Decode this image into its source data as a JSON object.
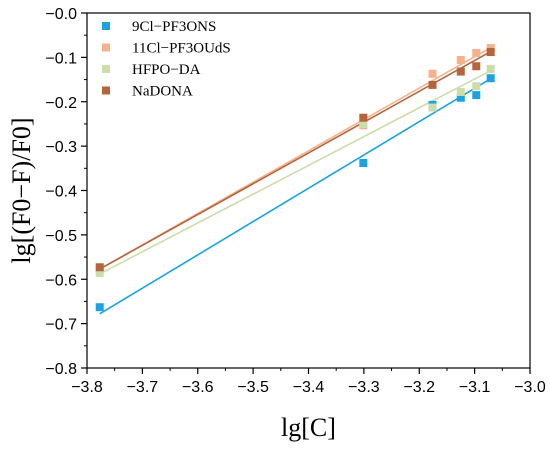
{
  "chart_data": {
    "type": "scatter",
    "xlabel": "lg[C]",
    "ylabel": "lg[(F0−F)/F0]",
    "xlim": [
      -3.8,
      -3.0
    ],
    "ylim": [
      -0.8,
      0.0
    ],
    "x_ticks": [
      -3.8,
      -3.7,
      -3.6,
      -3.5,
      -3.4,
      -3.3,
      -3.2,
      -3.1,
      -3.0
    ],
    "x_tick_labels": [
      "−3.8",
      "−3.7",
      "−3.6",
      "−3.5",
      "−3.4",
      "−3.3",
      "−3.2",
      "−3.1",
      "−3.0"
    ],
    "y_ticks": [
      -0.8,
      -0.7,
      -0.6,
      -0.5,
      -0.4,
      -0.3,
      -0.2,
      -0.1,
      0.0
    ],
    "y_tick_labels": [
      "−0.8",
      "−0.7",
      "−0.6",
      "−0.5",
      "−0.4",
      "−0.3",
      "−0.2",
      "−0.1",
      "−0.0"
    ],
    "legend_position": "top-left",
    "grid": false,
    "series": [
      {
        "name": "9Cl−PF3ONS",
        "color": "#1AA3E0",
        "x": [
          -3.777,
          -3.301,
          -3.176,
          -3.125,
          -3.097,
          -3.071
        ],
        "y": [
          -0.663,
          -0.338,
          -0.207,
          -0.191,
          -0.185,
          -0.147
        ],
        "fit": {
          "x": [
            -3.777,
            -3.071
          ],
          "y": [
            -0.678,
            -0.148
          ]
        }
      },
      {
        "name": "11Cl−PF3OUdS",
        "color": "#F5B28C",
        "x": [
          -3.777,
          -3.301,
          -3.176,
          -3.125,
          -3.097,
          -3.071
        ],
        "y": [
          -0.576,
          -0.253,
          -0.137,
          -0.106,
          -0.09,
          -0.079
        ],
        "fit": {
          "x": [
            -3.777,
            -3.071
          ],
          "y": [
            -0.577,
            -0.078
          ]
        }
      },
      {
        "name": "HFPO−DA",
        "color": "#CCDDAA",
        "x": [
          -3.777,
          -3.301,
          -3.176,
          -3.125,
          -3.097,
          -3.071
        ],
        "y": [
          -0.586,
          -0.25,
          -0.213,
          -0.178,
          -0.165,
          -0.126
        ],
        "fit": {
          "x": [
            -3.777,
            -3.071
          ],
          "y": [
            -0.588,
            -0.13
          ]
        }
      },
      {
        "name": "NaDONA",
        "color": "#B5643C",
        "x": [
          -3.777,
          -3.301,
          -3.176,
          -3.125,
          -3.097,
          -3.071
        ],
        "y": [
          -0.573,
          -0.236,
          -0.162,
          -0.132,
          -0.12,
          -0.088
        ],
        "fit": {
          "x": [
            -3.777,
            -3.071
          ],
          "y": [
            -0.577,
            -0.087
          ]
        }
      }
    ]
  }
}
